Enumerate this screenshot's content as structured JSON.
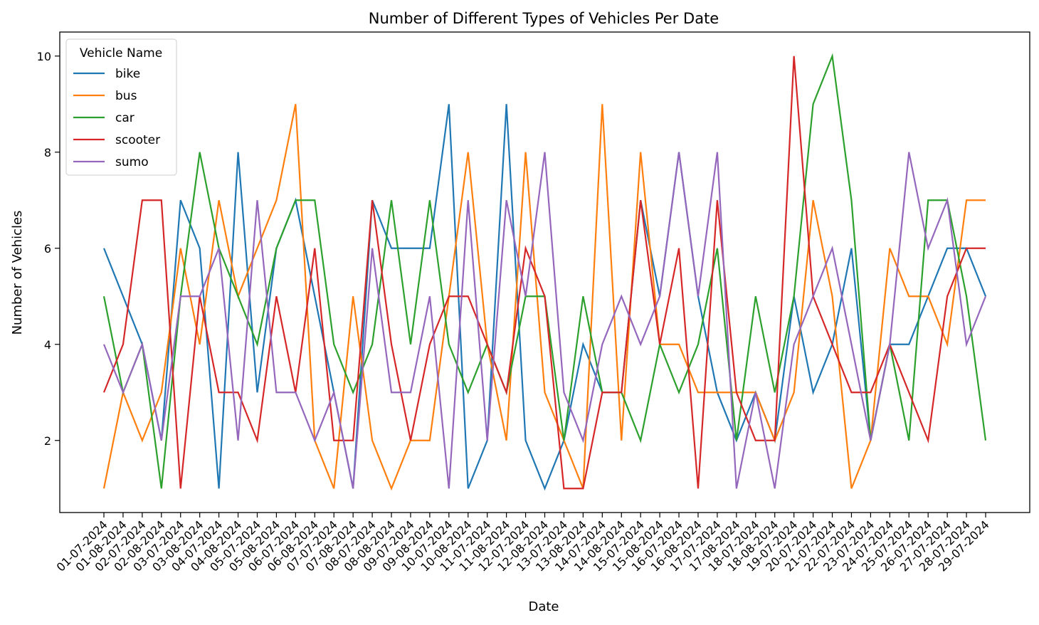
{
  "chart_data": {
    "type": "line",
    "title": "Number of Different Types of Vehicles Per Date",
    "xlabel": "Date",
    "ylabel": "Number of Vehicles",
    "ylim": [
      0.5,
      10.5
    ],
    "yticks": [
      2,
      4,
      6,
      8,
      10
    ],
    "grid": false,
    "legend_title": "Vehicle Name",
    "legend_position": "top-left",
    "categories": [
      "01-07-2024",
      "01-08-2024",
      "02-07-2024",
      "02-08-2024",
      "03-07-2024",
      "03-08-2024",
      "04-07-2024",
      "04-08-2024",
      "05-07-2024",
      "05-08-2024",
      "06-07-2024",
      "06-08-2024",
      "07-07-2024",
      "07-08-2024",
      "08-07-2024",
      "08-08-2024",
      "09-07-2024",
      "09-08-2024",
      "10-07-2024",
      "10-08-2024",
      "11-07-2024",
      "11-08-2024",
      "12-07-2024",
      "12-08-2024",
      "13-07-2024",
      "13-08-2024",
      "14-07-2024",
      "14-08-2024",
      "15-07-2024",
      "15-08-2024",
      "16-07-2024",
      "16-08-2024",
      "17-07-2024",
      "17-08-2024",
      "18-07-2024",
      "18-08-2024",
      "19-07-2024",
      "20-07-2024",
      "21-07-2024",
      "22-07-2024",
      "23-07-2024",
      "24-07-2024",
      "25-07-2024",
      "26-07-2024",
      "27-07-2024",
      "28-07-2024",
      "29-07-2024"
    ],
    "series": [
      {
        "name": "bike",
        "color": "#1f77b4",
        "values": [
          6,
          5,
          4,
          2,
          7,
          6,
          1,
          8,
          3,
          6,
          7,
          5,
          3,
          1,
          7,
          6,
          6,
          6,
          9,
          1,
          2,
          9,
          2,
          1,
          2,
          4,
          3,
          3,
          7,
          5,
          8,
          5,
          3,
          2,
          3,
          2,
          5,
          3,
          4,
          6,
          2,
          4,
          4,
          5,
          6,
          6,
          5
        ]
      },
      {
        "name": "bus",
        "color": "#ff7f0e",
        "values": [
          1,
          3,
          2,
          3,
          6,
          4,
          7,
          5,
          6,
          7,
          9,
          2,
          1,
          5,
          2,
          1,
          2,
          2,
          5,
          8,
          4,
          2,
          8,
          3,
          2,
          1,
          9,
          2,
          8,
          4,
          4,
          3,
          3,
          3,
          3,
          2,
          3,
          7,
          5,
          1,
          2,
          6,
          5,
          5,
          4,
          7,
          7
        ]
      },
      {
        "name": "car",
        "color": "#2ca02c",
        "values": [
          5,
          3,
          4,
          1,
          5,
          8,
          6,
          5,
          4,
          6,
          7,
          7,
          4,
          3,
          4,
          7,
          4,
          7,
          4,
          3,
          4,
          3,
          5,
          5,
          2,
          5,
          3,
          3,
          2,
          4,
          3,
          4,
          6,
          2,
          5,
          3,
          5,
          9,
          10,
          7,
          2,
          4,
          2,
          7,
          7,
          5,
          2
        ]
      },
      {
        "name": "scooter",
        "color": "#d62728",
        "values": [
          3,
          4,
          7,
          7,
          1,
          5,
          3,
          3,
          2,
          5,
          3,
          6,
          2,
          2,
          7,
          4,
          2,
          4,
          5,
          5,
          4,
          3,
          6,
          5,
          1,
          1,
          3,
          3,
          7,
          4,
          6,
          1,
          7,
          3,
          2,
          2,
          10,
          5,
          4,
          3,
          3,
          4,
          3,
          2,
          5,
          6,
          6
        ]
      },
      {
        "name": "sumo",
        "color": "#9467bd",
        "values": [
          4,
          3,
          4,
          2,
          5,
          5,
          6,
          2,
          7,
          3,
          3,
          2,
          3,
          1,
          6,
          3,
          3,
          5,
          1,
          7,
          2,
          7,
          5,
          8,
          3,
          2,
          4,
          5,
          4,
          5,
          8,
          5,
          8,
          1,
          3,
          1,
          4,
          5,
          6,
          4,
          2,
          4,
          8,
          6,
          7,
          4,
          5
        ]
      }
    ]
  }
}
